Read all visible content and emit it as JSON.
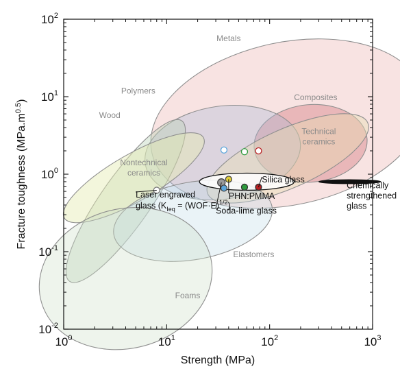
{
  "chart_data": {
    "type": "scatter",
    "xscale": "log",
    "yscale": "log",
    "xlim": [
      1,
      1000
    ],
    "ylim": [
      0.01,
      100
    ],
    "xlabel": "Strength (MPa)",
    "ylabel": "Fracture toughness (MPa.m",
    "ylabel_exponent": "0.5",
    "ylabel_close": ")",
    "x_ticks": [
      {
        "value": 1,
        "base": "10",
        "exp": "0"
      },
      {
        "value": 10,
        "base": "10",
        "exp": "1"
      },
      {
        "value": 100,
        "base": "10",
        "exp": "2"
      },
      {
        "value": 1000,
        "base": "10",
        "exp": "3"
      }
    ],
    "y_ticks": [
      {
        "value": 0.01,
        "base": "10",
        "exp": "-2"
      },
      {
        "value": 0.1,
        "base": "10",
        "exp": "-1"
      },
      {
        "value": 1,
        "base": "10",
        "exp": "0"
      },
      {
        "value": 10,
        "base": "10",
        "exp": "1"
      },
      {
        "value": 100,
        "base": "10",
        "exp": "2"
      }
    ],
    "regions": [
      {
        "name": "Metals",
        "cx": 150,
        "cy": 4.5,
        "rx": 1.35,
        "ry": 1.05,
        "rot": -12,
        "color": "#e8a9a6",
        "opacity": 0.32,
        "label": {
          "x": 40,
          "y": 52
        }
      },
      {
        "name": "Composites",
        "cx": 250,
        "cy": 2.5,
        "rx": 0.55,
        "ry": 0.5,
        "rot": -5,
        "color": "#d47a80",
        "opacity": 0.42,
        "label": {
          "x": 280,
          "y": 9
        }
      },
      {
        "name": "Polymers",
        "cx": 35,
        "cy": 1.9,
        "rx": 0.76,
        "ry": 0.6,
        "rot": -8,
        "color": "#a9b8d8",
        "opacity": 0.35,
        "label": {
          "x": 5.3,
          "y": 11
        }
      },
      {
        "name": "Technical ceramics",
        "label_lines": [
          "Technical",
          "ceramics"
        ],
        "cx": 150,
        "cy": 1.6,
        "rx": 0.85,
        "ry": 0.38,
        "rot": -24,
        "color": "#e8ddb2",
        "opacity": 0.42,
        "label": {
          "x": 300,
          "y": 3.3
        }
      },
      {
        "name": "Wood",
        "cx": 4,
        "cy": 0.45,
        "rx": 0.95,
        "ry": 0.32,
        "rot": -55,
        "color": "#b9d3b6",
        "opacity": 0.4,
        "label": {
          "x": 2.8,
          "y": 5.3
        }
      },
      {
        "name": "Nontechnical ceramics",
        "label_lines": [
          "Nontechnical",
          "ceramics"
        ],
        "cx": 4.8,
        "cy": 0.9,
        "rx": 0.78,
        "ry": 0.3,
        "rot": -30,
        "color": "#e5ebb2",
        "opacity": 0.45,
        "label": {
          "x": 6,
          "y": 1.3
        }
      },
      {
        "name": "Elastomers",
        "cx": 18,
        "cy": 0.25,
        "rx": 0.78,
        "ry": 0.5,
        "rot": -10,
        "color": "#c2dde8",
        "opacity": 0.35,
        "label": {
          "x": 70,
          "y": 0.085
        }
      },
      {
        "name": "Foams",
        "cx": 4,
        "cy": 0.045,
        "rx": 0.85,
        "ry": 0.9,
        "rot": -15,
        "color": "#cfe0c8",
        "opacity": 0.35,
        "label": {
          "x": 16,
          "y": 0.025
        }
      }
    ],
    "highlight_regions": [
      {
        "name": "glass band",
        "cx": 60,
        "cy": 0.8,
        "rx": 0.46,
        "ry": 0.11,
        "rot": 0,
        "fill": "#ffffff",
        "opacity": 0.85
      },
      {
        "name": "Chemically strengthened glass",
        "cx": 600,
        "cy": 0.8,
        "rx": 0.3,
        "ry": 0.025,
        "rot": 0,
        "fill": "#111111",
        "opacity": 1.0
      }
    ],
    "points": [
      {
        "name": "Laser engraved glass",
        "x": 8,
        "y": 0.62,
        "fill": "#ffffff",
        "stroke": "#777777",
        "size": 4.5
      },
      {
        "name": "Soda-lime glass",
        "x": 34,
        "y": 0.78,
        "fill": "#9a9a9a",
        "stroke": "#444444",
        "size": 5.5
      },
      {
        "name": "Soda-lime glass (blue)",
        "x": 36,
        "y": 0.66,
        "fill": "#5ba6dc",
        "stroke": "#444444",
        "size": 4.5
      },
      {
        "name": "PHN:PMMA",
        "x": 40,
        "y": 0.86,
        "fill": "#e0cc3a",
        "stroke": "#444444",
        "size": 4.5
      },
      {
        "name": "Silica glass (green)",
        "x": 57,
        "y": 0.68,
        "fill": "#2f9a3d",
        "stroke": "#333333",
        "size": 4.5
      },
      {
        "name": "Silica glass (red)",
        "x": 78,
        "y": 0.68,
        "fill": "#b81f22",
        "stroke": "#333333",
        "size": 4.5
      },
      {
        "name": "open blue",
        "x": 36,
        "y": 2.05,
        "fill": "#ffffff",
        "stroke": "#5ba6dc",
        "size": 4.5
      },
      {
        "name": "open green",
        "x": 57,
        "y": 1.95,
        "fill": "#ffffff",
        "stroke": "#2f9a3d",
        "size": 4.5
      },
      {
        "name": "open red",
        "x": 78,
        "y": 2.0,
        "fill": "#ffffff",
        "stroke": "#b81f22",
        "size": 4.5
      }
    ],
    "annotations": [
      {
        "text": "Silica glass",
        "x": 84,
        "y": 0.78,
        "lead_to": {
          "x": 78,
          "y": 0.68
        }
      },
      {
        "text": "PHN:PMMA",
        "x": 40,
        "y": 0.48,
        "lead_to": {
          "x": 40,
          "y": 0.86
        }
      },
      {
        "text": "Soda-lime glass",
        "x": 30,
        "y": 0.31,
        "lead_to": {
          "x": 34,
          "y": 0.78
        }
      },
      {
        "lines": [
          "Chemically",
          "strengthened",
          "glass"
        ],
        "x": 560,
        "y": 0.66,
        "lead_to": {
          "x": 420,
          "y": 0.8
        }
      },
      {
        "lines": [
          "Laser engraved",
          "glass (K",
          ")"
        ],
        "x": 5.0,
        "y": 0.5,
        "lead_to": {
          "x": 8,
          "y": 0.62
        }
      }
    ],
    "laser_label": {
      "line1": "Laser engraved",
      "line2_a": "glass (K",
      "line2_sub": "Ieq",
      "line2_b": " = (WOF·E)",
      "line2_sup": "1/2",
      "line2_c": ")"
    },
    "colors": {
      "axis": "#111111",
      "region_label": "#8a8a8a"
    }
  }
}
